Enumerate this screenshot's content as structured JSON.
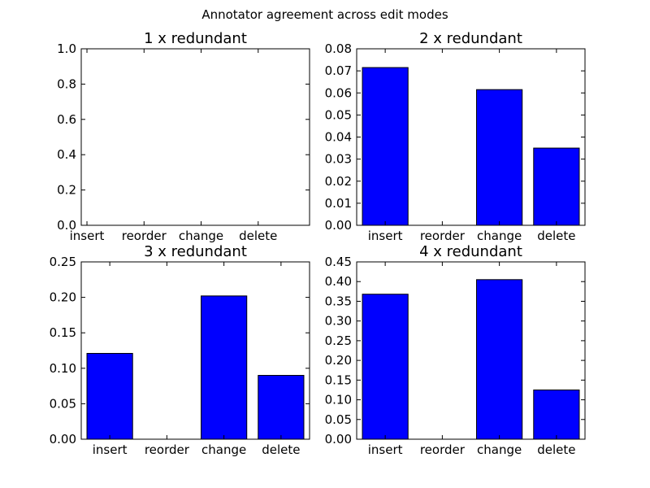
{
  "figure": {
    "title": "Annotator agreement across edit modes"
  },
  "chart_data": [
    {
      "type": "bar",
      "title": "1 x redundant",
      "categories": [
        "insert",
        "reorder",
        "change",
        "delete"
      ],
      "values": [
        0,
        0,
        0,
        0
      ],
      "ylim": [
        0,
        1.0
      ],
      "yticks": [
        "0.0",
        "0.2",
        "0.4",
        "0.6",
        "0.8",
        "1.0"
      ],
      "bar_color": "#0000ff"
    },
    {
      "type": "bar",
      "title": "2 x redundant",
      "categories": [
        "insert",
        "reorder",
        "change",
        "delete"
      ],
      "values": [
        0.0715,
        0,
        0.0615,
        0.035
      ],
      "ylim": [
        0,
        0.08
      ],
      "yticks": [
        "0.00",
        "0.01",
        "0.02",
        "0.03",
        "0.04",
        "0.05",
        "0.06",
        "0.07",
        "0.08"
      ],
      "bar_color": "#0000ff"
    },
    {
      "type": "bar",
      "title": "3 x redundant",
      "categories": [
        "insert",
        "reorder",
        "change",
        "delete"
      ],
      "values": [
        0.121,
        0,
        0.202,
        0.09
      ],
      "ylim": [
        0,
        0.25
      ],
      "yticks": [
        "0.00",
        "0.05",
        "0.10",
        "0.15",
        "0.20",
        "0.25"
      ],
      "bar_color": "#0000ff"
    },
    {
      "type": "bar",
      "title": "4 x redundant",
      "categories": [
        "insert",
        "reorder",
        "change",
        "delete"
      ],
      "values": [
        0.368,
        0,
        0.405,
        0.125
      ],
      "ylim": [
        0,
        0.45
      ],
      "yticks": [
        "0.00",
        "0.05",
        "0.10",
        "0.15",
        "0.20",
        "0.25",
        "0.30",
        "0.35",
        "0.40",
        "0.45"
      ],
      "bar_color": "#0000ff"
    }
  ]
}
